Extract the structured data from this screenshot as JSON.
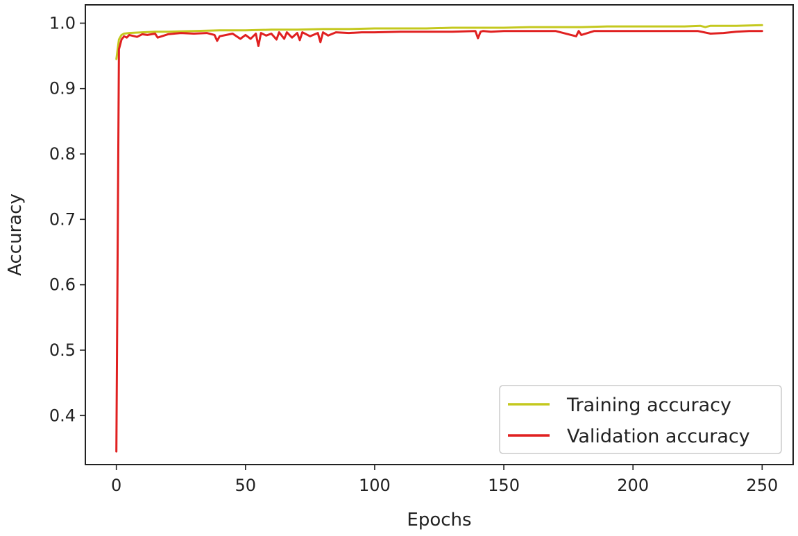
{
  "chart_data": {
    "type": "line",
    "title": "",
    "xlabel": "Epochs",
    "ylabel": "Accuracy",
    "xlim": [
      -12,
      262
    ],
    "ylim": [
      0.325,
      1.028
    ],
    "xticks": [
      0,
      50,
      100,
      150,
      200,
      250
    ],
    "xtick_labels": [
      "0",
      "50",
      "100",
      "150",
      "200",
      "250"
    ],
    "yticks": [
      0.4,
      0.5,
      0.6,
      0.7,
      0.8,
      0.9,
      1.0
    ],
    "ytick_labels": [
      "0.4",
      "0.5",
      "0.6",
      "0.7",
      "0.8",
      "0.9",
      "1.0"
    ],
    "grid": false,
    "legend_position": "lower-right",
    "series": [
      {
        "name": "Training accuracy",
        "color": "#c4c81e",
        "x": [
          0,
          1,
          2,
          3,
          5,
          10,
          15,
          20,
          30,
          40,
          50,
          60,
          70,
          80,
          90,
          100,
          110,
          120,
          130,
          140,
          150,
          160,
          170,
          180,
          190,
          200,
          210,
          220,
          226,
          228,
          230,
          240,
          250
        ],
        "y": [
          0.945,
          0.975,
          0.982,
          0.984,
          0.985,
          0.986,
          0.987,
          0.987,
          0.988,
          0.989,
          0.989,
          0.99,
          0.99,
          0.991,
          0.991,
          0.992,
          0.992,
          0.992,
          0.993,
          0.993,
          0.993,
          0.994,
          0.994,
          0.994,
          0.995,
          0.995,
          0.995,
          0.995,
          0.996,
          0.994,
          0.996,
          0.996,
          0.997
        ]
      },
      {
        "name": "Validation accuracy",
        "color": "#e02020",
        "x": [
          0,
          1,
          2,
          3,
          4,
          5,
          8,
          10,
          12,
          15,
          16,
          20,
          25,
          30,
          35,
          38,
          39,
          40,
          45,
          48,
          50,
          52,
          54,
          55,
          56,
          58,
          60,
          62,
          63,
          65,
          66,
          68,
          70,
          71,
          72,
          75,
          78,
          79,
          80,
          82,
          85,
          90,
          95,
          100,
          110,
          120,
          130,
          139,
          140,
          141,
          142,
          145,
          150,
          160,
          170,
          178,
          179,
          180,
          185,
          190,
          200,
          210,
          220,
          225,
          230,
          235,
          240,
          245,
          250
        ],
        "y": [
          0.345,
          0.96,
          0.975,
          0.98,
          0.978,
          0.982,
          0.979,
          0.983,
          0.982,
          0.984,
          0.978,
          0.983,
          0.985,
          0.984,
          0.985,
          0.982,
          0.973,
          0.98,
          0.984,
          0.976,
          0.982,
          0.976,
          0.984,
          0.965,
          0.985,
          0.981,
          0.984,
          0.975,
          0.986,
          0.976,
          0.986,
          0.978,
          0.985,
          0.974,
          0.986,
          0.98,
          0.985,
          0.971,
          0.986,
          0.981,
          0.986,
          0.985,
          0.986,
          0.986,
          0.987,
          0.987,
          0.987,
          0.988,
          0.977,
          0.987,
          0.988,
          0.987,
          0.988,
          0.988,
          0.988,
          0.98,
          0.988,
          0.982,
          0.988,
          0.988,
          0.988,
          0.988,
          0.988,
          0.988,
          0.984,
          0.985,
          0.987,
          0.988,
          0.988
        ]
      }
    ]
  }
}
